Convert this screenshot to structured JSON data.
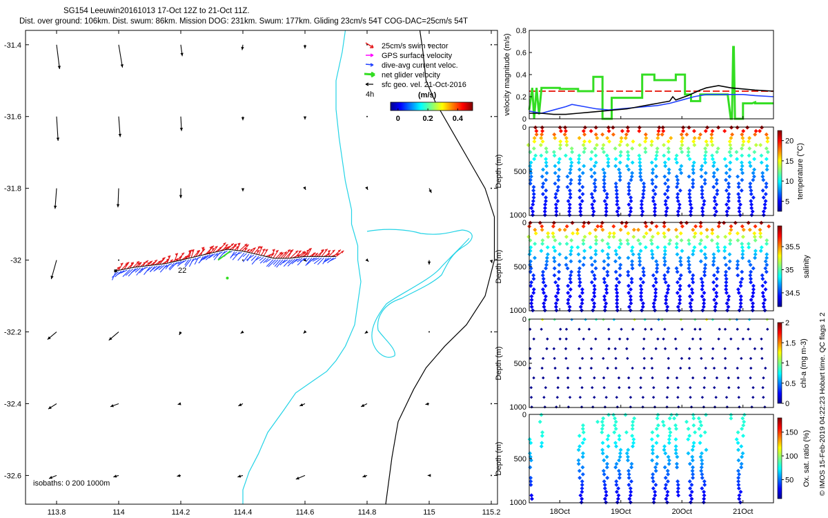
{
  "header": {
    "line1": "SG154 Leeuwin20161013 17-Oct 12Z to 21-Oct 11Z.",
    "line2": "Dist. over ground: 106km. Dist. swum: 86km. Mission DOG: 231km. Swum: 177km. Gliding 23cm/s 54T COG-DAC=25cm/s 54T",
    "copyright": "© IMOS 15-Feb-2019 04:22:23 Hobart time. QC flags 1  2"
  },
  "colors": {
    "coast": "#22d3e6",
    "isobath": "#000000",
    "swim": "#e41a1c",
    "gps": "#ff00ff",
    "dac": "#1f3fff",
    "net": "#33dd22",
    "geo": "#000000",
    "threshold": "#e8281e"
  },
  "chart_data": [
    {
      "id": "map",
      "type": "scatter",
      "title": "SG154 Leeuwin20161013 17-Oct 12Z to 21-Oct 11Z.",
      "xlim": [
        113.7,
        115.22
      ],
      "ylim": [
        -32.68,
        -31.36
      ],
      "xticks": [
        113.8,
        114,
        114.2,
        114.4,
        114.6,
        114.8,
        115,
        115.2
      ],
      "xtick_labels": [
        "113.8",
        "114",
        "114.2",
        "114.4",
        "114.6",
        "114.8",
        "115",
        "115.2"
      ],
      "yticks": [
        -31.4,
        -31.6,
        -31.8,
        -32,
        -32.2,
        -32.4,
        -32.6
      ],
      "ytick_labels": [
        "-31.4",
        "-31.6",
        "-31.8",
        "-32",
        "-32.2",
        "-32.4",
        "-32.6"
      ],
      "legend": [
        "25cm/s swim vector",
        "GPS surface velocity",
        "dive-avg current veloc.",
        "net glider velocity",
        "sfc geo. vel. 21-Oct-2016"
      ],
      "legend_label_4h": "4h",
      "colorbar_title": "(m/s)",
      "colorbar_ticks": [
        "0",
        "0.2",
        "0.4"
      ],
      "colorbar_range": [
        -0.05,
        0.5
      ],
      "isobaths_label": "isobaths: 0   200  1000m",
      "track_label": "22",
      "geo_grid_lons": [
        113.8,
        114,
        114.2,
        114.4,
        114.6,
        114.8,
        115,
        115.2
      ],
      "geo_grid_lats": [
        -31.4,
        -31.6,
        -31.8,
        -32,
        -32.2,
        -32.4,
        -32.6
      ],
      "geo_vectors_uv": [
        [
          [
            0.04,
            -0.32
          ],
          [
            0.05,
            -0.3
          ],
          [
            0.02,
            -0.15
          ],
          [
            -0.01,
            -0.07
          ],
          [
            0.0,
            -0.05
          ],
          [
            0.0,
            0.0
          ],
          [
            0.0,
            0.0
          ],
          [
            0.0,
            0.0
          ]
        ],
        [
          [
            0.02,
            -0.32
          ],
          [
            0.02,
            -0.27
          ],
          [
            0.01,
            -0.19
          ],
          [
            0.0,
            -0.05
          ],
          [
            0.0,
            -0.04
          ],
          [
            0.0,
            0.0
          ],
          [
            0.0,
            0.0
          ],
          [
            0.0,
            0.0
          ]
        ],
        [
          [
            -0.02,
            -0.27
          ],
          [
            -0.01,
            -0.25
          ],
          [
            0.0,
            -0.13
          ],
          [
            0.0,
            -0.04
          ],
          [
            0.01,
            -0.02
          ],
          [
            0.01,
            -0.02
          ],
          [
            0.03,
            -0.06
          ],
          [
            0.0,
            0.0
          ]
        ],
        [
          [
            -0.07,
            -0.25
          ],
          [
            0.0,
            0.0
          ],
          [
            0.0,
            0.0
          ],
          [
            0.0,
            0.0
          ],
          [
            0.02,
            -0.02
          ],
          [
            0.02,
            -0.02
          ],
          [
            0.0,
            -0.06
          ],
          [
            0.01,
            -0.04
          ]
        ],
        [
          [
            -0.12,
            -0.1
          ],
          [
            -0.13,
            -0.11
          ],
          [
            -0.02,
            -0.04
          ],
          [
            -0.03,
            -0.02
          ],
          [
            -0.02,
            -0.02
          ],
          [
            -0.03,
            -0.02
          ],
          [
            0.0,
            0.0
          ],
          [
            0.0,
            0.0
          ]
        ],
        [
          [
            -0.11,
            -0.07
          ],
          [
            -0.11,
            -0.04
          ],
          [
            -0.04,
            -0.01
          ],
          [
            -0.06,
            -0.03
          ],
          [
            -0.07,
            -0.03
          ],
          [
            -0.08,
            -0.04
          ],
          [
            -0.05,
            -0.01
          ],
          [
            0.0,
            0.0
          ]
        ],
        [
          [
            -0.1,
            -0.04
          ],
          [
            -0.07,
            -0.02
          ],
          [
            -0.05,
            -0.01
          ],
          [
            -0.07,
            -0.02
          ],
          [
            -0.12,
            -0.05
          ],
          [
            -0.06,
            -0.02
          ],
          [
            -0.02,
            0.0
          ],
          [
            0.0,
            0.0
          ]
        ]
      ],
      "track_lon": [
        113.99,
        114.05,
        114.1,
        114.15,
        114.2,
        114.25,
        114.3,
        114.35,
        114.4,
        114.45,
        114.5,
        114.55,
        114.6,
        114.65,
        114.7
      ],
      "track_lat": [
        -32.03,
        -32.02,
        -32.015,
        -32.01,
        -32.0,
        -31.99,
        -31.98,
        -31.97,
        -31.975,
        -31.985,
        -31.995,
        -31.995,
        -31.99,
        -31.99,
        -31.99
      ],
      "coastline_lon": [
        114.73,
        114.72,
        114.7,
        114.7,
        114.71,
        114.72,
        114.73,
        114.74,
        114.75,
        114.75,
        114.76,
        114.77,
        114.77,
        114.78,
        114.77,
        114.76,
        114.73,
        114.7,
        114.67,
        114.62,
        114.57,
        114.53,
        114.48,
        114.45,
        114.42,
        114.4,
        114.4
      ],
      "coastline_lat": [
        -31.36,
        -31.42,
        -31.5,
        -31.58,
        -31.66,
        -31.72,
        -31.78,
        -31.82,
        -31.86,
        -31.9,
        -31.93,
        -31.96,
        -32.0,
        -32.06,
        -32.12,
        -32.18,
        -32.24,
        -32.28,
        -32.31,
        -32.34,
        -32.37,
        -32.42,
        -32.48,
        -32.54,
        -32.59,
        -32.64,
        -32.68
      ],
      "isobath_lon": [
        114.97,
        114.98,
        114.99,
        115.02,
        115.06,
        115.1,
        115.14,
        115.18,
        115.21,
        115.21,
        115.18,
        115.12,
        115.05,
        114.99,
        114.95,
        114.9,
        114.88,
        114.86
      ],
      "isobath_lat": [
        -31.36,
        -31.42,
        -31.5,
        -31.56,
        -31.62,
        -31.68,
        -31.74,
        -31.8,
        -31.88,
        -32.0,
        -32.1,
        -32.18,
        -32.24,
        -32.3,
        -32.36,
        -32.45,
        -32.55,
        -32.68
      ]
    },
    {
      "id": "velocity",
      "type": "line",
      "ylabel": "velocity magnitude (m/s)",
      "xlim": [
        17.5,
        21.5
      ],
      "ylim": [
        0,
        0.8
      ],
      "yticks": [
        0,
        0.2,
        0.4,
        0.6,
        0.8
      ],
      "ytick_labels": [
        "0",
        "0.2",
        "0.4",
        "0.6",
        "0.8"
      ],
      "threshold": 0.25,
      "series": [
        {
          "name": "net glider velocity",
          "color": "#33dd22",
          "x": [
            17.5,
            17.55,
            17.58,
            17.62,
            17.66,
            17.7,
            17.7,
            18.0,
            18.0,
            18.3,
            18.3,
            18.55,
            18.55,
            18.7,
            18.7,
            18.85,
            18.85,
            19.35,
            19.35,
            19.55,
            19.55,
            19.9,
            19.9,
            20.05,
            20.05,
            20.15,
            20.15,
            20.3,
            20.3,
            20.75,
            20.8,
            20.82,
            20.84,
            20.85,
            20.87,
            20.9,
            21.0,
            21.0,
            21.15,
            21.2,
            21.2,
            21.5
          ],
          "y": [
            0.08,
            0.28,
            0.0,
            0.28,
            0.04,
            0.27,
            0.28,
            0.28,
            0.27,
            0.27,
            0.25,
            0.25,
            0.38,
            0.38,
            0.0,
            0.0,
            0.19,
            0.19,
            0.4,
            0.4,
            0.35,
            0.35,
            0.4,
            0.4,
            0.22,
            0.22,
            0.16,
            0.16,
            0.22,
            0.22,
            0.0,
            0.0,
            0.65,
            0.65,
            0.0,
            0.0,
            0.0,
            0.14,
            0.14,
            0.15,
            0.14,
            0.14
          ]
        },
        {
          "name": "dive-avg current veloc.",
          "color": "#1f3fff",
          "x": [
            17.5,
            17.7,
            17.9,
            18.1,
            18.2,
            18.4,
            18.6,
            18.8,
            19.0,
            19.2,
            19.4,
            19.6,
            19.8,
            20.0,
            20.2,
            20.4,
            20.6,
            20.8,
            21.0,
            21.2,
            21.5
          ],
          "y": [
            0.07,
            0.05,
            0.08,
            0.11,
            0.13,
            0.11,
            0.09,
            0.08,
            0.09,
            0.1,
            0.11,
            0.12,
            0.14,
            0.17,
            0.2,
            0.22,
            0.22,
            0.22,
            0.22,
            0.21,
            0.2
          ]
        },
        {
          "name": "sfc geo. vel. 21-Oct-2016",
          "color": "#000000",
          "x": [
            17.5,
            17.7,
            17.9,
            18.1,
            18.3,
            18.5,
            18.7,
            18.9,
            19.1,
            19.3,
            19.5,
            19.6,
            19.7,
            19.8,
            19.85,
            19.9,
            20.1,
            20.3,
            20.4,
            20.6,
            20.8,
            21.0,
            21.2,
            21.5
          ],
          "y": [
            0.05,
            0.05,
            0.04,
            0.04,
            0.05,
            0.06,
            0.07,
            0.08,
            0.09,
            0.11,
            0.13,
            0.14,
            0.15,
            0.16,
            0.2,
            0.17,
            0.21,
            0.26,
            0.28,
            0.3,
            0.28,
            0.27,
            0.26,
            0.25
          ]
        }
      ]
    },
    {
      "id": "temperature",
      "type": "scatter",
      "ylabel": "Depth (m)",
      "cbar_label": "temperature (°C)",
      "ylim": [
        1000,
        0
      ],
      "yticks": [
        0,
        500,
        1000
      ],
      "ytick_labels": [
        "0",
        "500",
        "1000"
      ],
      "cbar_range": [
        2.5,
        22.5
      ],
      "cbar_ticks": [
        5,
        10,
        15,
        20
      ],
      "cbar_tick_labels": [
        "5",
        "10",
        "15",
        "20"
      ],
      "colormap": "jet",
      "dives_start": 17.55,
      "dives_spacing": 0.2,
      "dive_count": 20,
      "profile": "temperature"
    },
    {
      "id": "salinity",
      "type": "scatter",
      "ylabel": "Depth (m)",
      "cbar_label": "salinity",
      "ylim": [
        1000,
        0
      ],
      "yticks": [
        0,
        500,
        1000
      ],
      "ytick_labels": [
        "0",
        "500",
        "1000"
      ],
      "cbar_range": [
        34.2,
        35.95
      ],
      "cbar_ticks": [
        34.5,
        35,
        35.5
      ],
      "cbar_tick_labels": [
        "34.5",
        "35",
        "35.5"
      ],
      "colormap": "jet",
      "dives_start": 17.55,
      "dives_spacing": 0.2,
      "dive_count": 20,
      "profile": "salinity"
    },
    {
      "id": "chla",
      "type": "scatter",
      "ylabel": "Depth (m)",
      "cbar_label": "chl-a (mg m-3)",
      "ylim": [
        1000,
        0
      ],
      "yticks": [
        0,
        500,
        1000
      ],
      "ytick_labels": [
        "0",
        "500",
        "1000"
      ],
      "cbar_range": [
        0,
        2
      ],
      "cbar_ticks": [
        0,
        0.5,
        1,
        1.5,
        2
      ],
      "cbar_tick_labels": [
        "0",
        "0.5",
        "1",
        "1.5",
        "2"
      ],
      "colormap": "jet",
      "dives_start": 17.55,
      "dives_spacing": 0.2,
      "dive_count": 20,
      "profile": "chla"
    },
    {
      "id": "oxygen",
      "type": "scatter",
      "ylabel": "Depth (m)",
      "cbar_label": "Ox. sat. ratio (%)",
      "xlim": [
        17.5,
        21.5
      ],
      "ylim": [
        1000,
        0
      ],
      "yticks": [
        0,
        500,
        1000
      ],
      "ytick_labels": [
        "0",
        "500",
        "1000"
      ],
      "xticks": [
        18,
        19,
        20,
        21
      ],
      "xtick_labels": [
        "18Oct",
        "19Oct",
        "20Oct",
        "21Oct"
      ],
      "cbar_range": [
        10,
        180
      ],
      "cbar_ticks": [
        50,
        100,
        150
      ],
      "cbar_tick_labels": [
        "50",
        "100",
        "150"
      ],
      "colormap": "jet",
      "segments": [
        [
          17.5,
          17.55
        ],
        [
          17.65,
          17.72
        ],
        [
          18.3,
          18.45
        ],
        [
          18.6,
          19.25
        ],
        [
          19.5,
          19.95
        ],
        [
          20.05,
          20.4
        ],
        [
          20.8,
          21.05
        ]
      ],
      "dives_start": 17.55,
      "dives_spacing": 0.2,
      "dive_count": 20,
      "profile": "oxygen"
    }
  ]
}
